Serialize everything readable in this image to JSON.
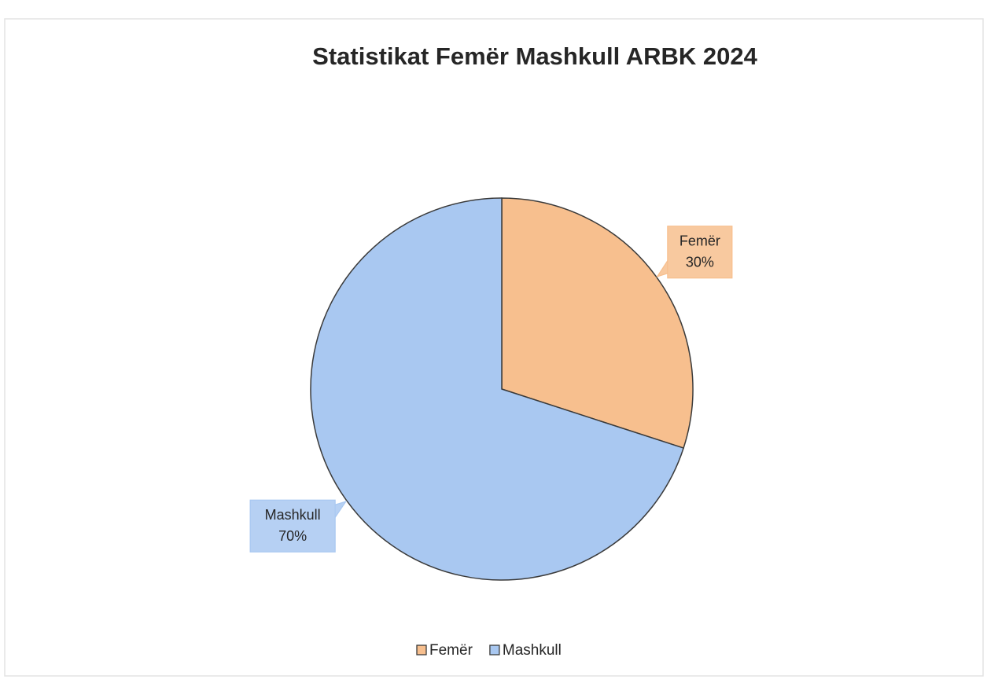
{
  "chart_data": {
    "type": "pie",
    "title": "Statistikat Femër Mashkull ARBK 2024",
    "categories": [
      "Femër",
      "Mashkull"
    ],
    "values": [
      30,
      70
    ],
    "value_labels": [
      "30%",
      "70%"
    ],
    "colors": [
      "#f7bf8e",
      "#a9c8f1"
    ],
    "legend": "bottom"
  }
}
